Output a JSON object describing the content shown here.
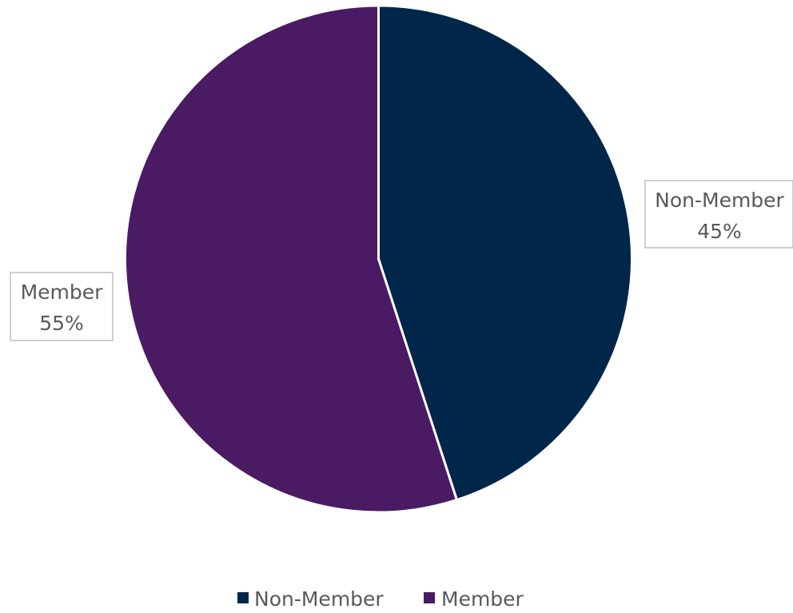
{
  "chart_data": {
    "type": "pie",
    "title": "",
    "categories": [
      "Non-Member",
      "Member"
    ],
    "values": [
      45,
      55
    ],
    "labels": [
      "45%",
      "55%"
    ],
    "colors": [
      "#00264a",
      "#4a1a62"
    ],
    "start_angle_deg": 0,
    "direction": "clockwise",
    "legend": {
      "position": "bottom",
      "entries": [
        "Non-Member",
        "Member"
      ]
    },
    "data_labels": {
      "show_category": true,
      "show_percent": true,
      "bordered": true
    }
  }
}
